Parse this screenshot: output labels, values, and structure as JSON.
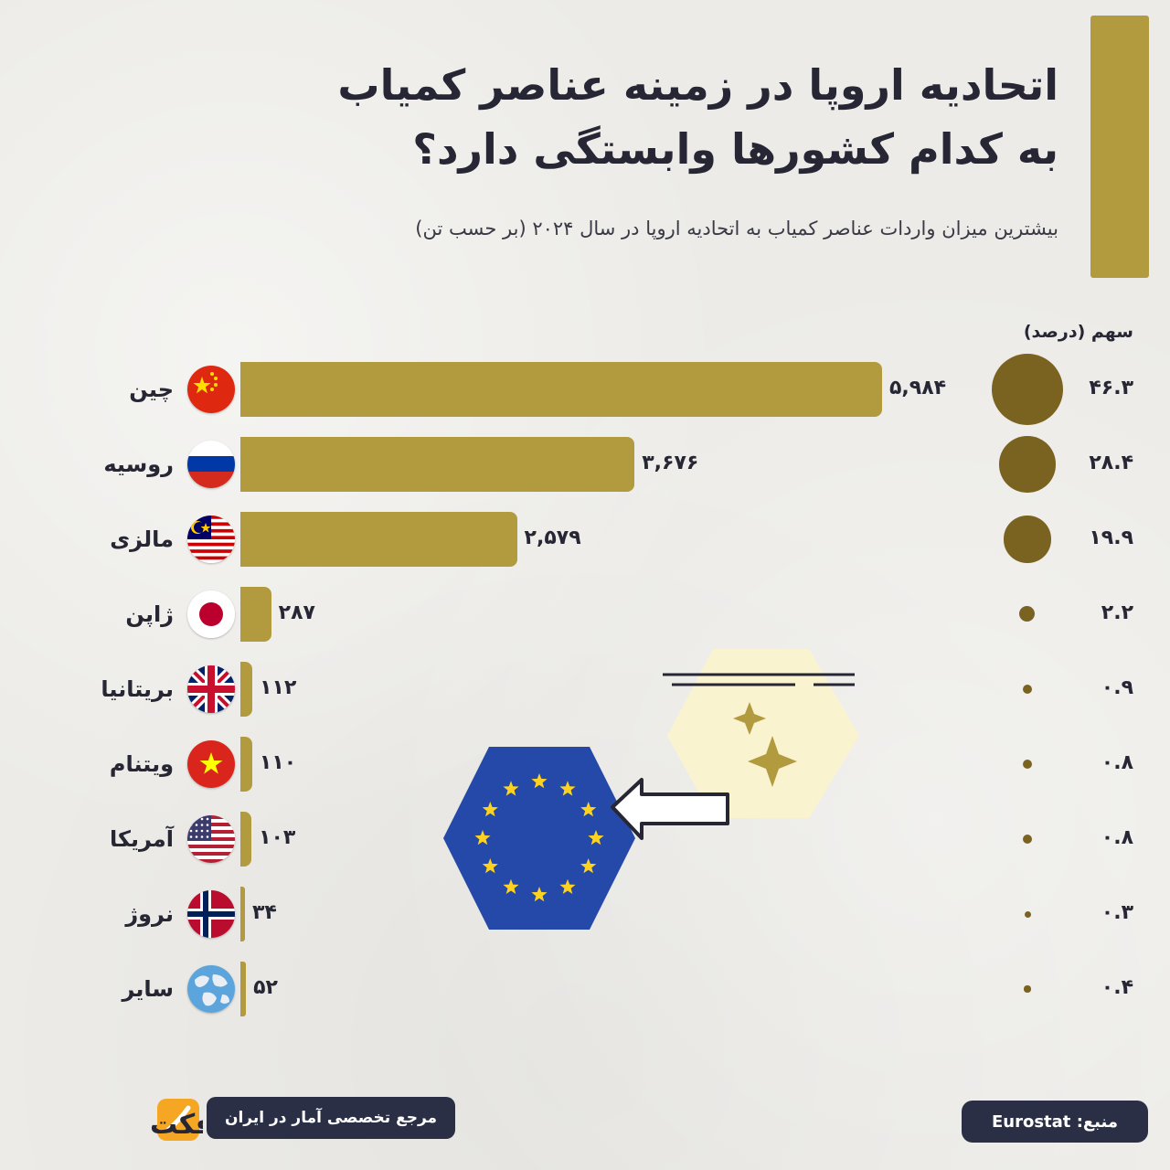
{
  "header": {
    "title_line1": "اتحادیه اروپا در زمینه عناصر کمیاب",
    "title_line2": "به کدام کشورها وابستگی دارد؟",
    "subtitle": "بیشترین میزان واردات عناصر کمیاب به اتحادیه اروپا در سال ۲۰۲۴ (بر حسب تن)"
  },
  "share_header": "سهم (درصد)",
  "chart_data": {
    "type": "bar",
    "categories": [
      "چین",
      "روسیه",
      "مالزی",
      "ژاپن",
      "بریتانیا",
      "ویتنام",
      "آمریکا",
      "نروژ",
      "سایر"
    ],
    "values": [
      5984,
      3676,
      2579,
      287,
      112,
      110,
      103,
      34,
      52
    ],
    "value_labels": [
      "۵,۹۸۴",
      "۳,۶۷۶",
      "۲,۵۷۹",
      "۲۸۷",
      "۱۱۲",
      "۱۱۰",
      "۱۰۳",
      "۳۴",
      "۵۲"
    ],
    "share_percent": [
      46.3,
      28.4,
      19.9,
      2.2,
      0.9,
      0.8,
      0.8,
      0.3,
      0.4
    ],
    "share_labels": [
      "۴۶.۳",
      "۲۸.۴",
      "۱۹.۹",
      "۲.۲",
      "۰.۹",
      "۰.۸",
      "۰.۸",
      "۰.۳",
      "۰.۴"
    ],
    "flags": [
      "china",
      "russia",
      "malaysia",
      "japan",
      "uk",
      "vietnam",
      "usa",
      "norway",
      "globe"
    ],
    "title": "بیشترین میزان واردات عناصر کمیاب به اتحادیه اروپا در سال ۲۰۲۴ (بر حسب تن)",
    "xlabel": "",
    "ylabel": "",
    "colors": {
      "bar": "#b29a3e",
      "bubble": "#7a6221"
    }
  },
  "footer": {
    "brand": "آمارفکت",
    "tagline": "مرجع تخصصی آمار در ایران",
    "source": "منبع: Eurostat"
  },
  "colors": {
    "background": "#ecebe7",
    "accent": "#b29a3e",
    "dark": "#2a2f45",
    "text": "#262634"
  }
}
